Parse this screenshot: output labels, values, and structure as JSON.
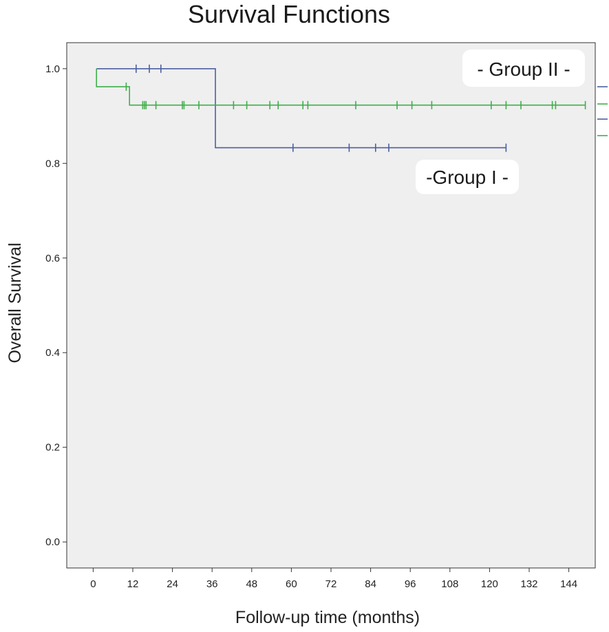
{
  "chart_data": {
    "type": "line",
    "title": "Survival Functions",
    "xlabel": "Follow-up time (months)",
    "ylabel": "Overall Survival",
    "xlim": [
      -8,
      152
    ],
    "ylim": [
      -0.055,
      1.055
    ],
    "xticks": [
      0,
      12,
      24,
      36,
      48,
      60,
      72,
      84,
      96,
      108,
      120,
      132,
      144
    ],
    "yticks": [
      0.0,
      0.2,
      0.4,
      0.6,
      0.8,
      1.0
    ],
    "ytick_labels": [
      "0.0",
      "0.2",
      "0.4",
      "0.6",
      "0.8",
      "1.0"
    ],
    "grid": false,
    "background_color": "#efefef",
    "series": [
      {
        "name": "-Group I -",
        "color": "#4a5fa0",
        "steps": [
          [
            1,
            1.0
          ],
          [
            37,
            1.0
          ],
          [
            37,
            0.833
          ],
          [
            125,
            0.833
          ]
        ],
        "censored": [
          [
            13,
            1.0
          ],
          [
            17,
            1.0
          ],
          [
            20.5,
            1.0
          ],
          [
            60.5,
            0.833
          ],
          [
            77.5,
            0.833
          ],
          [
            85.5,
            0.833
          ],
          [
            89.5,
            0.833
          ],
          [
            125,
            0.833
          ]
        ]
      },
      {
        "name": "- Group II -",
        "color": "#3fae4a",
        "steps": [
          [
            1,
            1.0
          ],
          [
            1,
            0.962
          ],
          [
            11,
            0.962
          ],
          [
            11,
            0.923
          ],
          [
            149,
            0.923
          ]
        ],
        "censored": [
          [
            10,
            0.962
          ],
          [
            15,
            0.923
          ],
          [
            15.5,
            0.923
          ],
          [
            16,
            0.923
          ],
          [
            19,
            0.923
          ],
          [
            27,
            0.923
          ],
          [
            27.5,
            0.923
          ],
          [
            32,
            0.923
          ],
          [
            42.5,
            0.923
          ],
          [
            46.5,
            0.923
          ],
          [
            53.5,
            0.923
          ],
          [
            56,
            0.923
          ],
          [
            63.5,
            0.923
          ],
          [
            65,
            0.923
          ],
          [
            79.5,
            0.923
          ],
          [
            92,
            0.923
          ],
          [
            96.5,
            0.923
          ],
          [
            102.5,
            0.923
          ],
          [
            120.5,
            0.923
          ],
          [
            125,
            0.923
          ],
          [
            129.5,
            0.923
          ],
          [
            139,
            0.923
          ],
          [
            140,
            0.923
          ],
          [
            149,
            0.923
          ]
        ]
      }
    ],
    "annotations": [
      {
        "text": "- Group II -",
        "near": "top-right"
      },
      {
        "text": "-Group I -",
        "near": "right, below Group I line"
      }
    ]
  }
}
